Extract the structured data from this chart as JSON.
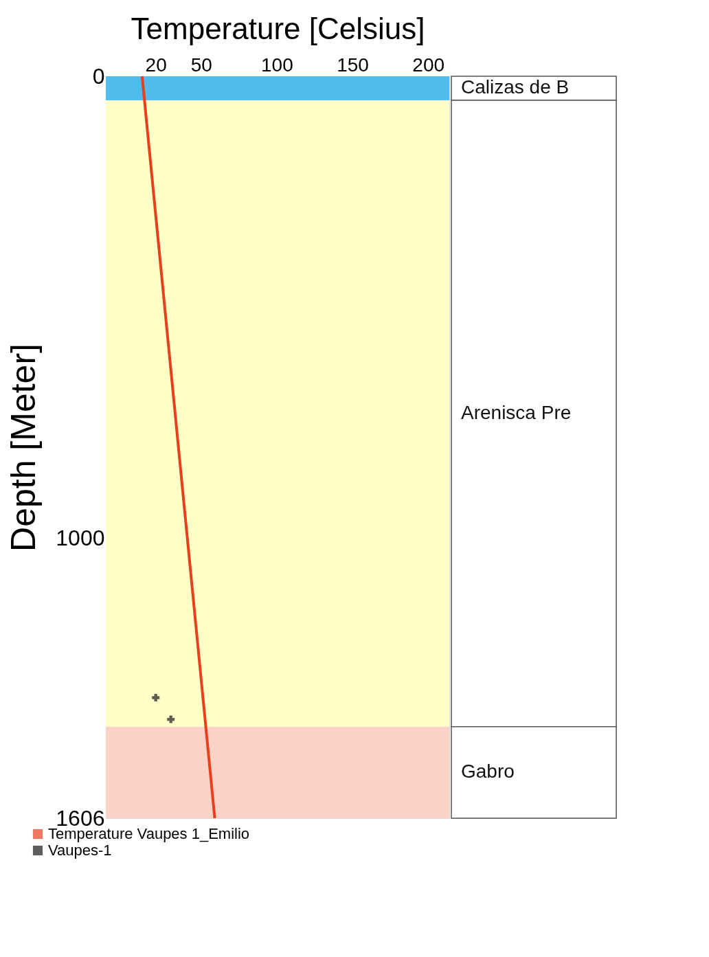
{
  "chart_data": {
    "type": "line",
    "xlabel": "Temperature [Celsius]",
    "ylabel": "Depth [Meter]",
    "xlim": [
      -13,
      214
    ],
    "xticks": [
      20,
      50,
      100,
      150,
      200
    ],
    "ylim": [
      1606,
      0
    ],
    "yticks": [
      0,
      1000,
      1606
    ],
    "grid": false,
    "legend": "bottom left",
    "series": [
      {
        "name": "Temperature Vaupes 1_Emilio",
        "type": "line",
        "color": "#e8401c",
        "x": [
          11,
          59
        ],
        "values": [
          0,
          1606
        ]
      },
      {
        "name": "Vaupes-1",
        "type": "scatter",
        "marker": "cross",
        "color": "#1a1a1a",
        "x": [
          20,
          30
        ],
        "values": [
          1345,
          1392
        ]
      }
    ],
    "bands": [
      {
        "axis": "y",
        "from": 0,
        "to": 52,
        "label": "Calizas de B",
        "color": "#52bbee"
      },
      {
        "axis": "y",
        "from": 52,
        "to": 1408,
        "label": "Arenisca Pre",
        "color": "#ffffc8"
      },
      {
        "axis": "y",
        "from": 1408,
        "to": 1606,
        "label": "Gabro",
        "color": "#fbd3c6"
      }
    ]
  }
}
